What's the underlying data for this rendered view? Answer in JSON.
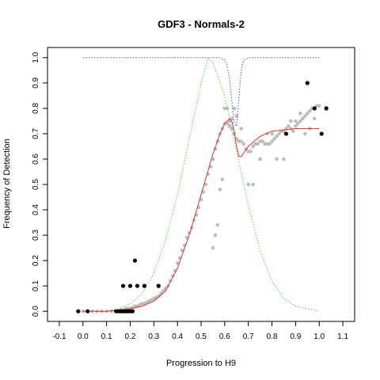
{
  "chart_data": {
    "type": "scatter",
    "title": "GDF3 - Normals-2",
    "xlabel": "Progression to H9",
    "ylabel": "Frequency of Detection",
    "xlim": [
      -0.15,
      1.15
    ],
    "ylim": [
      -0.04,
      1.04
    ],
    "xticks": [
      "-0.1",
      "0.0",
      "0.1",
      "0.2",
      "0.3",
      "0.4",
      "0.5",
      "0.6",
      "0.7",
      "0.8",
      "0.9",
      "1.0",
      "1.1"
    ],
    "yticks": [
      "0.0",
      "0.1",
      "0.2",
      "0.3",
      "0.4",
      "0.5",
      "0.6",
      "0.7",
      "0.8",
      "0.9",
      "1.0"
    ],
    "grid": false,
    "legend": "none",
    "colors": {
      "gray_points": "#bdbdbd",
      "black_points": "#000000",
      "red_curve": "#e8322d",
      "green_curve": "#3ddc3d",
      "blue_curve": "#4a4aff"
    },
    "series": [
      {
        "kind": "points",
        "color": "gray",
        "x": [
          0.0,
          0.02,
          0.04,
          0.06,
          0.08,
          0.1,
          0.12,
          0.14,
          0.15,
          0.16,
          0.17,
          0.18,
          0.19,
          0.2,
          0.21,
          0.22,
          0.23,
          0.24,
          0.25,
          0.26,
          0.27,
          0.28,
          0.29,
          0.3,
          0.31,
          0.32,
          0.33,
          0.34,
          0.35,
          0.36,
          0.37,
          0.38,
          0.39,
          0.4,
          0.41,
          0.42,
          0.43,
          0.44,
          0.45,
          0.46,
          0.47,
          0.48,
          0.49,
          0.5,
          0.51,
          0.52,
          0.53,
          0.54,
          0.55,
          0.56,
          0.57,
          0.58,
          0.59,
          0.6,
          0.61,
          0.62,
          0.63,
          0.64,
          0.65,
          0.66,
          0.67,
          0.68,
          0.69,
          0.7,
          0.71,
          0.72,
          0.73,
          0.74,
          0.75,
          0.76,
          0.77,
          0.78,
          0.79,
          0.8,
          0.81,
          0.82,
          0.83,
          0.84,
          0.85,
          0.86,
          0.87,
          0.88,
          0.89,
          0.9,
          0.91,
          0.92,
          0.93,
          0.94,
          0.95,
          0.96,
          0.97,
          0.98,
          0.99,
          1.0,
          0.55,
          0.56,
          0.57,
          0.58,
          0.59,
          0.6,
          0.61,
          0.62,
          0.63,
          0.64,
          0.65,
          0.66,
          0.67,
          0.7,
          0.72,
          0.75,
          0.78,
          0.8,
          0.82,
          0.85,
          0.88,
          0.9,
          0.92,
          0.94,
          0.96,
          0.98
        ],
        "y": [
          0.0,
          0.0,
          0.0,
          0.0,
          0.0,
          0.0,
          0.0,
          0.0,
          0.0,
          0.005,
          0.005,
          0.01,
          0.01,
          0.01,
          0.015,
          0.02,
          0.02,
          0.025,
          0.03,
          0.03,
          0.035,
          0.04,
          0.045,
          0.05,
          0.055,
          0.06,
          0.07,
          0.08,
          0.09,
          0.1,
          0.12,
          0.14,
          0.16,
          0.19,
          0.21,
          0.24,
          0.26,
          0.29,
          0.31,
          0.33,
          0.36,
          0.38,
          0.41,
          0.44,
          0.47,
          0.5,
          0.54,
          0.57,
          0.6,
          0.64,
          0.67,
          0.7,
          0.72,
          0.74,
          0.74,
          0.73,
          0.72,
          0.7,
          0.68,
          0.67,
          0.67,
          0.66,
          0.64,
          0.63,
          0.63,
          0.65,
          0.66,
          0.66,
          0.67,
          0.67,
          0.66,
          0.66,
          0.66,
          0.67,
          0.68,
          0.69,
          0.7,
          0.71,
          0.71,
          0.72,
          0.73,
          0.72,
          0.71,
          0.73,
          0.74,
          0.75,
          0.76,
          0.77,
          0.78,
          0.79,
          0.8,
          0.8,
          0.81,
          0.81,
          0.25,
          0.3,
          0.34,
          0.48,
          0.52,
          0.8,
          0.8,
          0.75,
          0.76,
          0.8,
          0.77,
          0.67,
          0.72,
          0.5,
          0.5,
          0.6,
          0.7,
          0.7,
          0.6,
          0.6,
          0.75,
          0.75,
          0.78,
          0.7,
          0.72,
          0.76
        ]
      },
      {
        "kind": "points",
        "color": "black",
        "x": [
          -0.02,
          0.02,
          0.14,
          0.15,
          0.16,
          0.17,
          0.18,
          0.19,
          0.2,
          0.21,
          0.17,
          0.2,
          0.23,
          0.26,
          0.22,
          0.32,
          0.86,
          0.95,
          0.98,
          1.01,
          1.03
        ],
        "y": [
          0.0,
          0.0,
          0.0,
          0.0,
          0.0,
          0.0,
          0.0,
          0.0,
          0.0,
          0.0,
          0.1,
          0.1,
          0.1,
          0.1,
          0.2,
          0.1,
          0.7,
          0.9,
          0.8,
          0.7,
          0.8
        ]
      },
      {
        "kind": "curve",
        "color": "red",
        "x": [
          0.0,
          0.1,
          0.2,
          0.25,
          0.3,
          0.35,
          0.4,
          0.45,
          0.5,
          0.55,
          0.58,
          0.6,
          0.62,
          0.63,
          0.64,
          0.65,
          0.66,
          0.67,
          0.7,
          0.75,
          0.8,
          0.9,
          1.0
        ],
        "y": [
          0.0,
          0.0,
          0.01,
          0.02,
          0.04,
          0.08,
          0.17,
          0.3,
          0.46,
          0.62,
          0.7,
          0.74,
          0.76,
          0.75,
          0.71,
          0.65,
          0.61,
          0.61,
          0.65,
          0.69,
          0.71,
          0.72,
          0.72
        ]
      },
      {
        "kind": "curve",
        "color": "green",
        "x": [
          0.1,
          0.15,
          0.2,
          0.25,
          0.3,
          0.35,
          0.4,
          0.45,
          0.5,
          0.53,
          0.55,
          0.6,
          0.65,
          0.7,
          0.75,
          0.8,
          0.85,
          0.9,
          0.95,
          1.0
        ],
        "y": [
          0.0,
          0.01,
          0.03,
          0.07,
          0.15,
          0.28,
          0.46,
          0.68,
          0.9,
          1.0,
          0.98,
          0.85,
          0.63,
          0.42,
          0.24,
          0.12,
          0.05,
          0.02,
          0.01,
          0.0
        ]
      },
      {
        "kind": "curve",
        "color": "blue",
        "x": [
          0.0,
          0.55,
          0.58,
          0.6,
          0.61,
          0.62,
          0.63,
          0.64,
          0.65,
          0.66,
          0.67,
          0.68,
          0.7,
          0.75,
          1.0
        ],
        "y": [
          1.0,
          1.0,
          1.0,
          0.99,
          0.97,
          0.92,
          0.83,
          0.74,
          0.73,
          0.84,
          0.95,
          0.99,
          1.0,
          1.0,
          1.0
        ]
      }
    ]
  }
}
